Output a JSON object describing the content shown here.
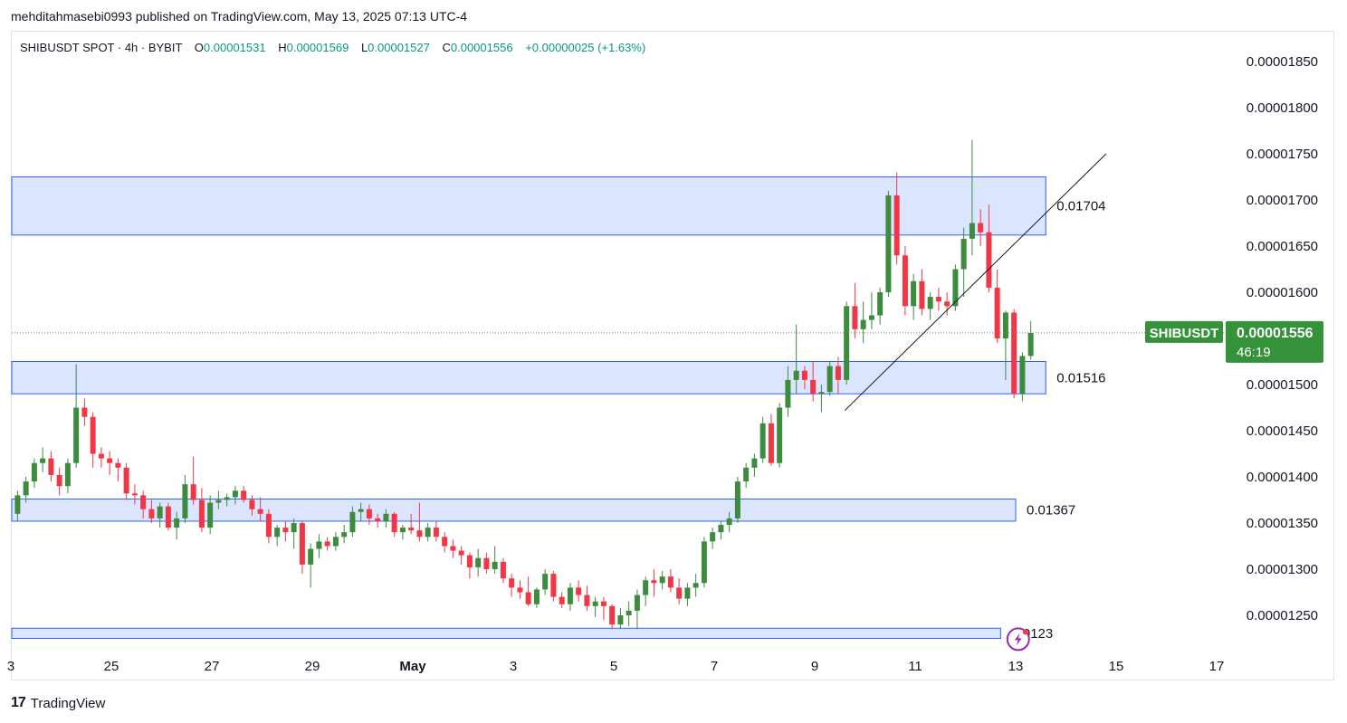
{
  "header": {
    "published_text": "mehditahmasebi0993 published on TradingView.com, May 13, 2025 07:13 UTC-4"
  },
  "legend": {
    "symbol": "SHIBUSDT SPOT · 4h · BYBIT",
    "open_label": "O",
    "open": "0.00001531",
    "high_label": "H",
    "high": "0.00001569",
    "low_label": "L",
    "low": "0.00001527",
    "close_label": "C",
    "close": "0.00001556",
    "change": "+0.00000025 (+1.63%)"
  },
  "price_tag": {
    "symbol": "SHIBUSDT",
    "price": "0.00001556",
    "countdown": "46:19"
  },
  "footer": {
    "brand": "TradingView",
    "logo_glyph": "17"
  },
  "colors": {
    "up": "#089981",
    "down": "#f23645",
    "candle_up_fill": "#3d8b3d",
    "zone_fill": "#d6e0ff",
    "zone_border": "#2962ff",
    "tag_bg": "#34923b"
  },
  "chart_data": {
    "type": "candlestick",
    "symbol": "SHIBUSDT",
    "interval": "4h",
    "ylim": [
      1.22e-05,
      1.89e-05
    ],
    "y_ticks": [
      "0.00001850",
      "0.00001800",
      "0.00001750",
      "0.00001700",
      "0.00001650",
      "0.00001600",
      "0.00001550",
      "0.00001500",
      "0.00001450",
      "0.00001400",
      "0.00001350",
      "0.00001300",
      "0.00001250"
    ],
    "x_ticks": [
      "3",
      "25",
      "27",
      "29",
      "May",
      "3",
      "5",
      "7",
      "9",
      "11",
      "13",
      "15",
      "17"
    ],
    "x_tick_days": [
      -2,
      0,
      2,
      4,
      6,
      8,
      10,
      12,
      14,
      16,
      18,
      20,
      22
    ],
    "x_range_days": [
      -2.0,
      23.5
    ],
    "last_price": 1.556e-05,
    "zones": [
      {
        "label": "0.01704",
        "low": 1.662e-05,
        "high": 1.725e-05,
        "x_end_day": 18.6
      },
      {
        "label": "0.01516",
        "low": 1.49e-05,
        "high": 1.525e-05,
        "x_end_day": 18.6
      },
      {
        "label": "0.01367",
        "low": 1.352e-05,
        "high": 1.376e-05,
        "x_end_day": 18.0
      },
      {
        "label": "0.0123",
        "low": 1.225e-05,
        "high": 1.236e-05,
        "x_end_day": 17.7
      }
    ],
    "trendline": {
      "x1_day": 14.6,
      "y1": 1.472e-05,
      "x2_day": 19.8,
      "y2": 1.75e-05
    },
    "candles": [
      [
        1.37e-05,
        1.378e-05,
        1.365e-05,
        1.372e-05
      ],
      [
        1.372e-05,
        1.376e-05,
        1.32e-05,
        1.335e-05
      ],
      [
        1.335e-05,
        1.37e-05,
        1.33e-05,
        1.365e-05
      ],
      [
        1.365e-05,
        1.368e-05,
        1.335e-05,
        1.345e-05
      ],
      [
        1.345e-05,
        1.35e-05,
        1.3e-05,
        1.31e-05
      ],
      [
        1.31e-05,
        1.318e-05,
        1.29e-05,
        1.313e-05
      ],
      [
        1.313e-05,
        1.358e-05,
        1.308e-05,
        1.352e-05
      ],
      [
        1.352e-05,
        1.365e-05,
        1.342e-05,
        1.36e-05
      ],
      [
        1.36e-05,
        1.385e-05,
        1.352e-05,
        1.38e-05
      ],
      [
        1.38e-05,
        1.4e-05,
        1.372e-05,
        1.395e-05
      ],
      [
        1.395e-05,
        1.42e-05,
        1.388e-05,
        1.415e-05
      ],
      [
        1.415e-05,
        1.432e-05,
        1.405e-05,
        1.42e-05
      ],
      [
        1.42e-05,
        1.428e-05,
        1.395e-05,
        1.402e-05
      ],
      [
        1.402e-05,
        1.41e-05,
        1.38e-05,
        1.39e-05
      ],
      [
        1.39e-05,
        1.42e-05,
        1.382e-05,
        1.415e-05
      ],
      [
        1.415e-05,
        1.522e-05,
        1.41e-05,
        1.475e-05
      ],
      [
        1.475e-05,
        1.485e-05,
        1.455e-05,
        1.465e-05
      ],
      [
        1.465e-05,
        1.47e-05,
        1.41e-05,
        1.425e-05
      ],
      [
        1.425e-05,
        1.432e-05,
        1.41e-05,
        1.42e-05
      ],
      [
        1.42e-05,
        1.428e-05,
        1.402e-05,
        1.415e-05
      ],
      [
        1.415e-05,
        1.42e-05,
        1.395e-05,
        1.41e-05
      ],
      [
        1.41e-05,
        1.415e-05,
        1.375e-05,
        1.382e-05
      ],
      [
        1.382e-05,
        1.392e-05,
        1.37e-05,
        1.38e-05
      ],
      [
        1.38e-05,
        1.385e-05,
        1.355e-05,
        1.365e-05
      ],
      [
        1.365e-05,
        1.375e-05,
        1.35e-05,
        1.355e-05
      ],
      [
        1.355e-05,
        1.372e-05,
        1.345e-05,
        1.368e-05
      ],
      [
        1.368e-05,
        1.372e-05,
        1.342e-05,
        1.345e-05
      ],
      [
        1.345e-05,
        1.362e-05,
        1.332e-05,
        1.355e-05
      ],
      [
        1.355e-05,
        1.402e-05,
        1.35e-05,
        1.392e-05
      ],
      [
        1.392e-05,
        1.422e-05,
        1.37e-05,
        1.375e-05
      ],
      [
        1.375e-05,
        1.388e-05,
        1.34e-05,
        1.345e-05
      ],
      [
        1.345e-05,
        1.38e-05,
        1.338e-05,
        1.372e-05
      ],
      [
        1.372e-05,
        1.385e-05,
        1.365e-05,
        1.375e-05
      ],
      [
        1.375e-05,
        1.382e-05,
        1.368e-05,
        1.378e-05
      ],
      [
        1.378e-05,
        1.39e-05,
        1.37e-05,
        1.385e-05
      ],
      [
        1.385e-05,
        1.39e-05,
        1.372e-05,
        1.375e-05
      ],
      [
        1.375e-05,
        1.38e-05,
        1.358e-05,
        1.365e-05
      ],
      [
        1.365e-05,
        1.378e-05,
        1.352e-05,
        1.36e-05
      ],
      [
        1.36e-05,
        1.365e-05,
        1.328e-05,
        1.335e-05
      ],
      [
        1.335e-05,
        1.348e-05,
        1.325e-05,
        1.345e-05
      ],
      [
        1.345e-05,
        1.352e-05,
        1.33e-05,
        1.34e-05
      ],
      [
        1.34e-05,
        1.355e-05,
        1.322e-05,
        1.35e-05
      ],
      [
        1.35e-05,
        1.352e-05,
        1.295e-05,
        1.305e-05
      ],
      [
        1.305e-05,
        1.328e-05,
        1.28e-05,
        1.322e-05
      ],
      [
        1.322e-05,
        1.338e-05,
        1.312e-05,
        1.33e-05
      ],
      [
        1.33e-05,
        1.335e-05,
        1.32e-05,
        1.325e-05
      ],
      [
        1.325e-05,
        1.34e-05,
        1.32e-05,
        1.335e-05
      ],
      [
        1.335e-05,
        1.348e-05,
        1.328e-05,
        1.34e-05
      ],
      [
        1.34e-05,
        1.368e-05,
        1.335e-05,
        1.362e-05
      ],
      [
        1.362e-05,
        1.372e-05,
        1.352e-05,
        1.365e-05
      ],
      [
        1.365e-05,
        1.37e-05,
        1.348e-05,
        1.355e-05
      ],
      [
        1.355e-05,
        1.36e-05,
        1.345e-05,
        1.352e-05
      ],
      [
        1.352e-05,
        1.365e-05,
        1.345e-05,
        1.36e-05
      ],
      [
        1.36e-05,
        1.362e-05,
        1.335e-05,
        1.34e-05
      ],
      [
        1.34e-05,
        1.348e-05,
        1.332e-05,
        1.345e-05
      ],
      [
        1.345e-05,
        1.36e-05,
        1.338e-05,
        1.342e-05
      ],
      [
        1.342e-05,
        1.372e-05,
        1.33e-05,
        1.335e-05
      ],
      [
        1.335e-05,
        1.35e-05,
        1.33e-05,
        1.345e-05
      ],
      [
        1.345e-05,
        1.352e-05,
        1.33e-05,
        1.335e-05
      ],
      [
        1.335e-05,
        1.34e-05,
        1.318e-05,
        1.325e-05
      ],
      [
        1.325e-05,
        1.332e-05,
        1.312e-05,
        1.32e-05
      ],
      [
        1.32e-05,
        1.325e-05,
        1.305e-05,
        1.315e-05
      ],
      [
        1.315e-05,
        1.318e-05,
        1.29e-05,
        1.302e-05
      ],
      [
        1.302e-05,
        1.322e-05,
        1.292e-05,
        1.312e-05
      ],
      [
        1.312e-05,
        1.318e-05,
        1.295e-05,
        1.3e-05
      ],
      [
        1.3e-05,
        1.325e-05,
        1.295e-05,
        1.308e-05
      ],
      [
        1.308e-05,
        1.312e-05,
        1.285e-05,
        1.29e-05
      ],
      [
        1.29e-05,
        1.295e-05,
        1.27e-05,
        1.28e-05
      ],
      [
        1.28e-05,
        1.288e-05,
        1.268e-05,
        1.275e-05
      ],
      [
        1.275e-05,
        1.292e-05,
        1.26e-05,
        1.262e-05
      ],
      [
        1.262e-05,
        1.28e-05,
        1.258e-05,
        1.278e-05
      ],
      [
        1.278e-05,
        1.3e-05,
        1.272e-05,
        1.295e-05
      ],
      [
        1.295e-05,
        1.298e-05,
        1.265e-05,
        1.27e-05
      ],
      [
        1.27e-05,
        1.275e-05,
        1.258e-05,
        1.262e-05
      ],
      [
        1.262e-05,
        1.285e-05,
        1.255e-05,
        1.28e-05
      ],
      [
        1.28e-05,
        1.288e-05,
        1.265e-05,
        1.272e-05
      ],
      [
        1.272e-05,
        1.282e-05,
        1.255e-05,
        1.26e-05
      ],
      [
        1.26e-05,
        1.27e-05,
        1.248e-05,
        1.265e-05
      ],
      [
        1.265e-05,
        1.27e-05,
        1.245e-05,
        1.26e-05
      ],
      [
        1.26e-05,
        1.262e-05,
        1.235e-05,
        1.24e-05
      ],
      [
        1.24e-05,
        1.258e-05,
        1.235e-05,
        1.25e-05
      ],
      [
        1.25e-05,
        1.265e-05,
        1.238e-05,
        1.255e-05
      ],
      [
        1.255e-05,
        1.278e-05,
        1.235e-05,
        1.272e-05
      ],
      [
        1.272e-05,
        1.292e-05,
        1.26e-05,
        1.288e-05
      ],
      [
        1.288e-05,
        1.3e-05,
        1.27e-05,
        1.285e-05
      ],
      [
        1.285e-05,
        1.298e-05,
        1.278e-05,
        1.292e-05
      ],
      [
        1.292e-05,
        1.3e-05,
        1.275e-05,
        1.28e-05
      ],
      [
        1.28e-05,
        1.29e-05,
        1.262e-05,
        1.268e-05
      ],
      [
        1.268e-05,
        1.285e-05,
        1.26e-05,
        1.28e-05
      ],
      [
        1.28e-05,
        1.295e-05,
        1.27e-05,
        1.285e-05
      ],
      [
        1.285e-05,
        1.335e-05,
        1.28e-05,
        1.33e-05
      ],
      [
        1.33e-05,
        1.345e-05,
        1.322e-05,
        1.34e-05
      ],
      [
        1.34e-05,
        1.352e-05,
        1.332e-05,
        1.348e-05
      ],
      [
        1.348e-05,
        1.362e-05,
        1.34e-05,
        1.355e-05
      ],
      [
        1.355e-05,
        1.4e-05,
        1.35e-05,
        1.395e-05
      ],
      [
        1.395e-05,
        1.415e-05,
        1.388e-05,
        1.41e-05
      ],
      [
        1.41e-05,
        1.425e-05,
        1.4e-05,
        1.42e-05
      ],
      [
        1.42e-05,
        1.465e-05,
        1.415e-05,
        1.458e-05
      ],
      [
        1.458e-05,
        1.468e-05,
        1.412e-05,
        1.415e-05
      ],
      [
        1.415e-05,
        1.48e-05,
        1.41e-05,
        1.475e-05
      ],
      [
        1.475e-05,
        1.52e-05,
        1.465e-05,
        1.505e-05
      ],
      [
        1.505e-05,
        1.565e-05,
        1.49e-05,
        1.515e-05
      ],
      [
        1.515e-05,
        1.52e-05,
        1.495e-05,
        1.505e-05
      ],
      [
        1.505e-05,
        1.525e-05,
        1.482e-05,
        1.49e-05
      ],
      [
        1.49e-05,
        1.5e-05,
        1.47e-05,
        1.492e-05
      ],
      [
        1.492e-05,
        1.525e-05,
        1.488e-05,
        1.52e-05
      ],
      [
        1.52e-05,
        1.53e-05,
        1.49e-05,
        1.505e-05
      ],
      [
        1.505e-05,
        1.59e-05,
        1.5e-05,
        1.585e-05
      ],
      [
        1.585e-05,
        1.61e-05,
        1.55e-05,
        1.56e-05
      ],
      [
        1.56e-05,
        1.59e-05,
        1.545e-05,
        1.57e-05
      ],
      [
        1.57e-05,
        1.6e-05,
        1.56e-05,
        1.575e-05
      ],
      [
        1.575e-05,
        1.605e-05,
        1.565e-05,
        1.6e-05
      ],
      [
        1.6e-05,
        1.71e-05,
        1.595e-05,
        1.705e-05
      ],
      [
        1.705e-05,
        1.73e-05,
        1.63e-05,
        1.64e-05
      ],
      [
        1.64e-05,
        1.65e-05,
        1.575e-05,
        1.585e-05
      ],
      [
        1.585e-05,
        1.62e-05,
        1.57e-05,
        1.612e-05
      ],
      [
        1.612e-05,
        1.625e-05,
        1.575e-05,
        1.582e-05
      ],
      [
        1.582e-05,
        1.6e-05,
        1.57e-05,
        1.595e-05
      ],
      [
        1.595e-05,
        1.605e-05,
        1.58e-05,
        1.59e-05
      ],
      [
        1.59e-05,
        1.6e-05,
        1.575e-05,
        1.585e-05
      ],
      [
        1.585e-05,
        1.63e-05,
        1.58e-05,
        1.625e-05
      ],
      [
        1.625e-05,
        1.67e-05,
        1.595e-05,
        1.658e-05
      ],
      [
        1.658e-05,
        1.765e-05,
        1.64e-05,
        1.675e-05
      ],
      [
        1.675e-05,
        1.69e-05,
        1.65e-05,
        1.665e-05
      ],
      [
        1.665e-05,
        1.695e-05,
        1.6e-05,
        1.605e-05
      ],
      [
        1.605e-05,
        1.625e-05,
        1.545e-05,
        1.55e-05
      ],
      [
        1.55e-05,
        1.58e-05,
        1.505e-05,
        1.578e-05
      ],
      [
        1.578e-05,
        1.582e-05,
        1.485e-05,
        1.49e-05
      ],
      [
        1.49e-05,
        1.535e-05,
        1.482e-05,
        1.531e-05
      ],
      [
        1.531e-05,
        1.569e-05,
        1.527e-05,
        1.556e-05
      ]
    ]
  }
}
